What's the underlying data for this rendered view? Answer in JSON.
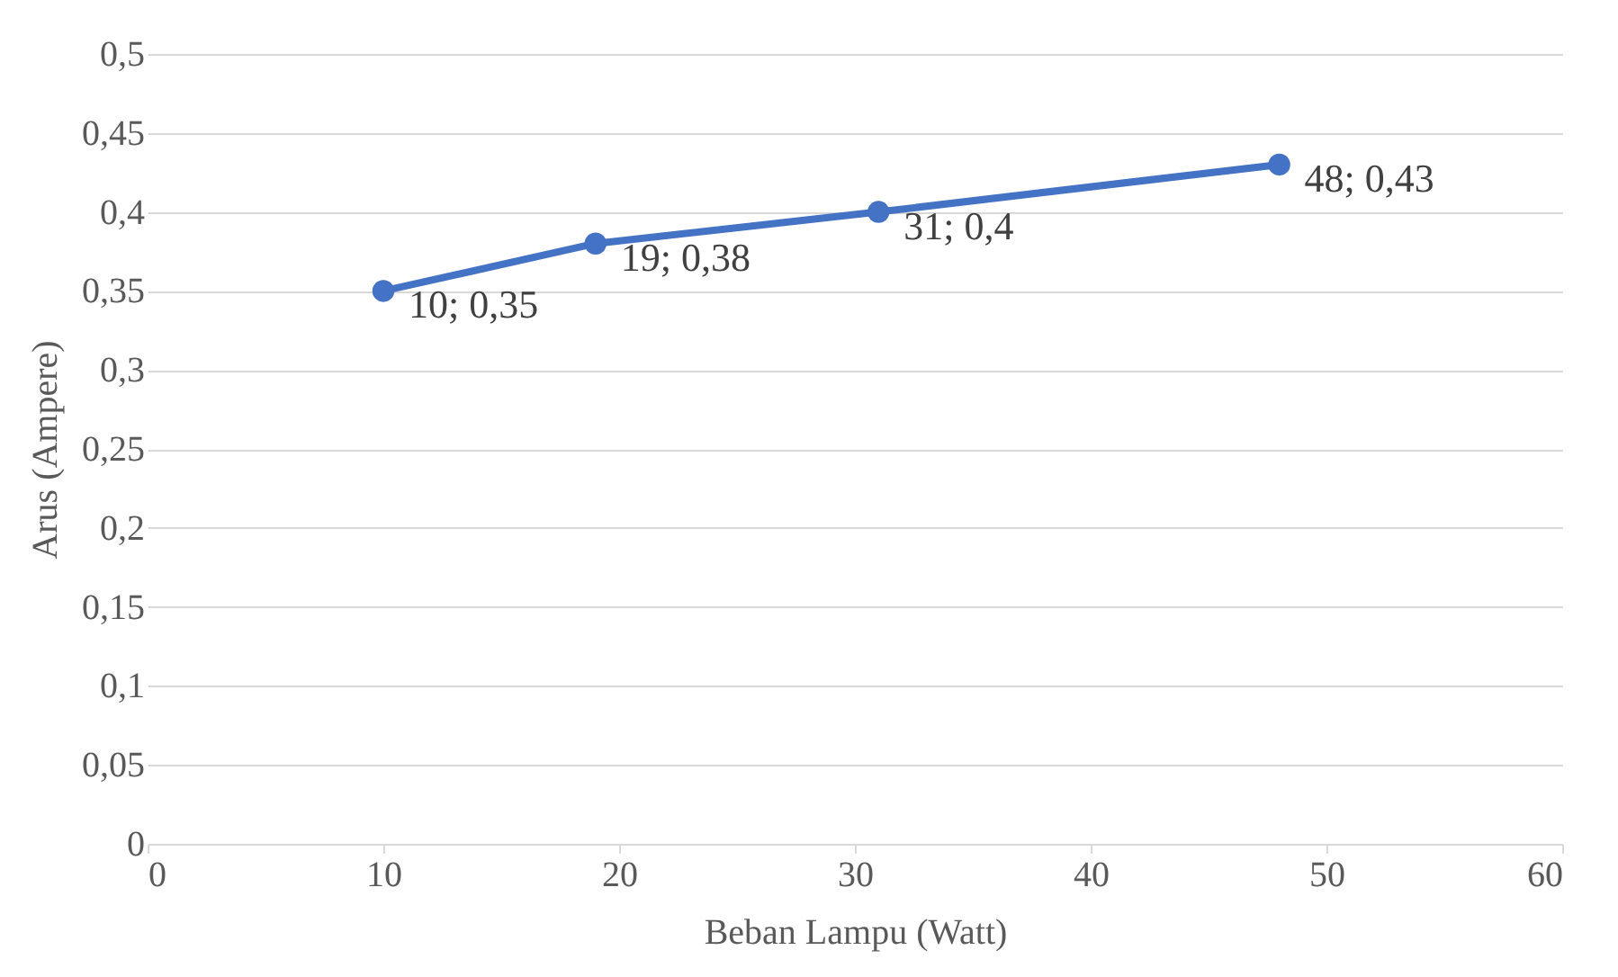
{
  "chart_data": {
    "type": "line",
    "xlabel": "Beban Lampu (Watt)",
    "ylabel": "Arus (Ampere)",
    "x": [
      10,
      19,
      31,
      48
    ],
    "series": [
      {
        "color": "#4472c4",
        "values": [
          0.35,
          0.38,
          0.4,
          0.43
        ],
        "value_labels": [
          "10; 0,35",
          "19; 0,38",
          "31; 0,4",
          "48; 0,43"
        ]
      }
    ],
    "xlim": [
      0,
      60
    ],
    "xticks": [
      0,
      10,
      20,
      30,
      40,
      50,
      60
    ],
    "ylim": [
      0,
      0.5
    ],
    "yticks": [
      0,
      {
        "value": 0.05,
        "label": "0,05"
      },
      {
        "value": 0.1,
        "label": "0,1"
      },
      {
        "value": 0.15,
        "label": "0,15"
      },
      {
        "value": 0.2,
        "label": "0,2"
      },
      {
        "value": 0.25,
        "label": "0,25"
      },
      {
        "value": 0.3,
        "label": "0,3"
      },
      {
        "value": 0.35,
        "label": "0,35"
      },
      {
        "value": 0.4,
        "label": "0,4"
      },
      {
        "value": 0.45,
        "label": "0,45"
      },
      {
        "value": 0.5,
        "label": "0,5"
      }
    ],
    "grid": "y",
    "legend": false,
    "marker": "circle",
    "line_style": "solid"
  }
}
